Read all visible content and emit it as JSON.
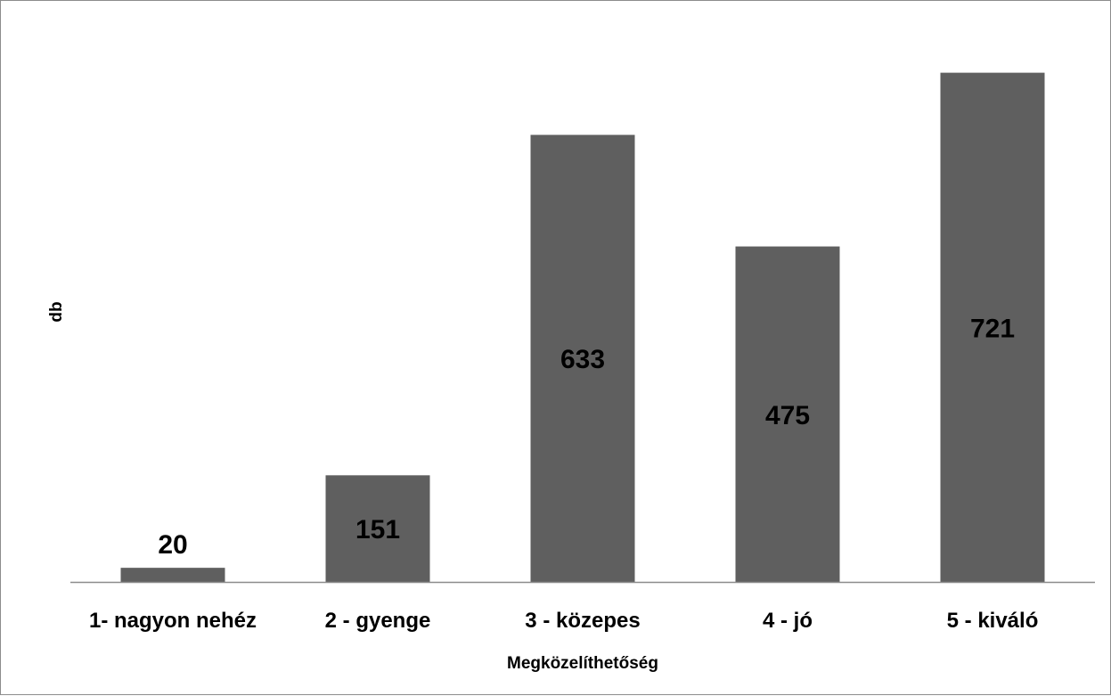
{
  "chart_data": {
    "type": "bar",
    "categories": [
      "1- nagyon nehéz",
      "2 - gyenge",
      "3 - közepes",
      "4 - jó",
      "5 - kiváló"
    ],
    "values": [
      20,
      151,
      633,
      475,
      721
    ],
    "data_labels": [
      "20",
      "151",
      "633",
      "475",
      "721"
    ],
    "title": "",
    "xlabel": "Megközelíthetőség",
    "ylabel": "db",
    "ylim": [
      0,
      800
    ],
    "grid": false,
    "legend": "none",
    "bar_color": "#5f5f5f",
    "axis_color": "#8c8c8c"
  }
}
